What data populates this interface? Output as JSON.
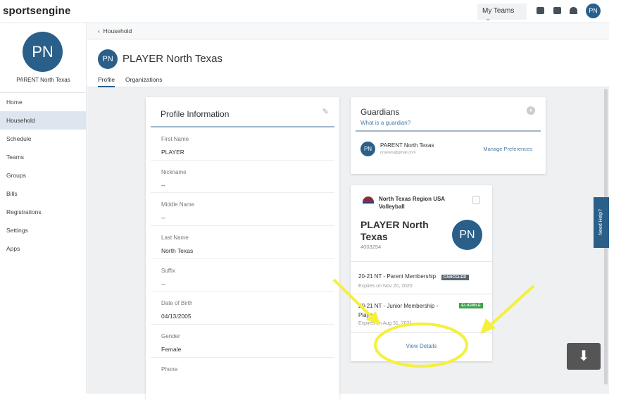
{
  "topbar": {
    "logo": "sportsengine",
    "my_teams": "My Teams",
    "avatar": "PN"
  },
  "sidebar": {
    "avatar": "PN",
    "name": "PARENT North Texas",
    "items": [
      {
        "label": "Home"
      },
      {
        "label": "Household",
        "active": true
      },
      {
        "label": "Schedule"
      },
      {
        "label": "Teams"
      },
      {
        "label": "Groups"
      },
      {
        "label": "Bills"
      },
      {
        "label": "Registrations"
      },
      {
        "label": "Settings"
      },
      {
        "label": "Apps"
      }
    ]
  },
  "breadcrumb": "Household",
  "header": {
    "avatar": "PN",
    "title": "PLAYER North Texas",
    "tabs": [
      {
        "label": "Profile",
        "active": true
      },
      {
        "label": "Organizations"
      }
    ]
  },
  "profile": {
    "title": "Profile Information",
    "fields": [
      {
        "label": "First Name",
        "value": "PLAYER"
      },
      {
        "label": "Nickname",
        "value": "--"
      },
      {
        "label": "Middle Name",
        "value": "--"
      },
      {
        "label": "Last Name",
        "value": "North Texas"
      },
      {
        "label": "Suffix",
        "value": "--"
      },
      {
        "label": "Date of Birth",
        "value": "04/13/2005"
      },
      {
        "label": "Gender",
        "value": "Female"
      },
      {
        "label": "Phone",
        "value": ""
      }
    ]
  },
  "guardians": {
    "title": "Guardians",
    "subtitle": "What is a guardian?",
    "guardian": {
      "avatar": "PN",
      "name": "PARENT North Texas",
      "email": "nrpenny@gmail.com",
      "action": "Manage Preferences"
    }
  },
  "org_card": {
    "org": "North Texas Region USA Volleyball",
    "player_name": "PLAYER North Texas",
    "player_id": "4003254",
    "avatar": "PN",
    "memberships": [
      {
        "name": "20-21 NT - Parent Membership",
        "status": "CANCELED",
        "status_color": "#5a6570",
        "expires": "Expires on Nov 20, 2020"
      },
      {
        "name": "20-21 NT - Junior Membership - Player",
        "status": "ELIGIBLE",
        "status_color": "#3fa34d",
        "expires": "Expires on Aug 31, 2021"
      }
    ],
    "view_details": "View Details"
  },
  "help": "Need Help?",
  "colors": {
    "brand": "#2a5f8a",
    "annotation": "#f5f03a"
  }
}
